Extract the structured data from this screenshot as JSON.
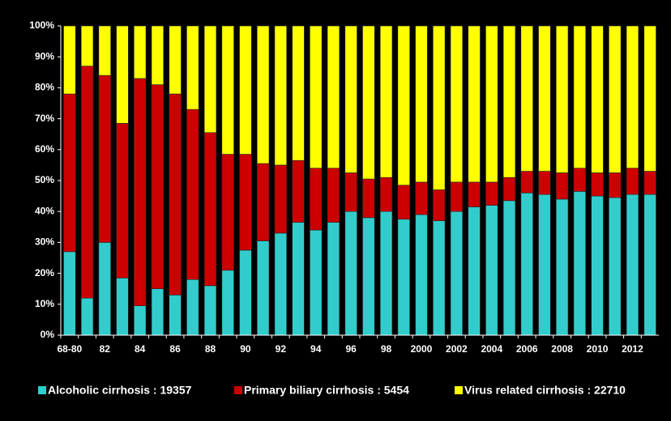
{
  "chart_data": {
    "type": "stacked_bar_percent",
    "categories": [
      "68-80",
      null,
      "82",
      null,
      "84",
      null,
      "86",
      null,
      "88",
      null,
      "90",
      null,
      "92",
      null,
      "94",
      null,
      "96",
      null,
      "98",
      null,
      "2000",
      null,
      "2002",
      null,
      "2004",
      null,
      "2006",
      null,
      "2008",
      null,
      "2010",
      null,
      "2012",
      null
    ],
    "series": [
      {
        "name": "Alcoholic cirrhosis : 19357",
        "color": "#33cccc",
        "values": [
          27,
          12,
          30,
          18.5,
          9.5,
          15,
          13,
          18,
          16,
          21,
          27.5,
          30.5,
          33,
          36.5,
          34,
          36.5,
          40,
          38,
          40,
          37.5,
          39,
          37,
          40,
          41.5,
          42,
          43.5,
          46,
          45.5,
          44,
          46.5,
          45,
          44.5,
          45.5,
          45.5
        ]
      },
      {
        "name": "Primary biliary cirrhosis : 5454",
        "color": "#cc0000",
        "values": [
          51,
          75,
          54,
          50,
          73.5,
          66,
          65,
          55,
          49.5,
          37.5,
          31,
          25,
          22,
          20,
          20,
          17.5,
          12.5,
          12.5,
          11,
          11,
          10.5,
          10,
          9.5,
          8,
          7.5,
          7.5,
          7,
          7.5,
          8.5,
          7.5,
          7.5,
          8,
          8.5,
          7.5
        ]
      },
      {
        "name": "Virus related cirrhosis : 22710",
        "color": "#ffff00",
        "values": [
          22,
          13,
          16,
          31.5,
          17,
          19,
          22,
          27,
          34.5,
          41.5,
          41.5,
          44.5,
          45,
          43.5,
          46,
          46,
          47.5,
          49.5,
          49,
          51.5,
          50.5,
          53,
          50.5,
          50.5,
          50.5,
          49,
          47,
          47,
          47.5,
          46,
          47.5,
          47.5,
          46,
          47
        ]
      }
    ],
    "ylim": [
      0,
      100
    ],
    "yticks": [
      {
        "value": 0,
        "label": "0%"
      },
      {
        "value": 10,
        "label": "10%"
      },
      {
        "value": 20,
        "label": "20%"
      },
      {
        "value": 30,
        "label": "30%"
      },
      {
        "value": 40,
        "label": "40%"
      },
      {
        "value": 50,
        "label": "50%"
      },
      {
        "value": 60,
        "label": "60%"
      },
      {
        "value": 70,
        "label": "70%"
      },
      {
        "value": 80,
        "label": "80%"
      },
      {
        "value": 90,
        "label": "90%"
      },
      {
        "value": 100,
        "label": "100%"
      }
    ],
    "legend": "bottom"
  }
}
